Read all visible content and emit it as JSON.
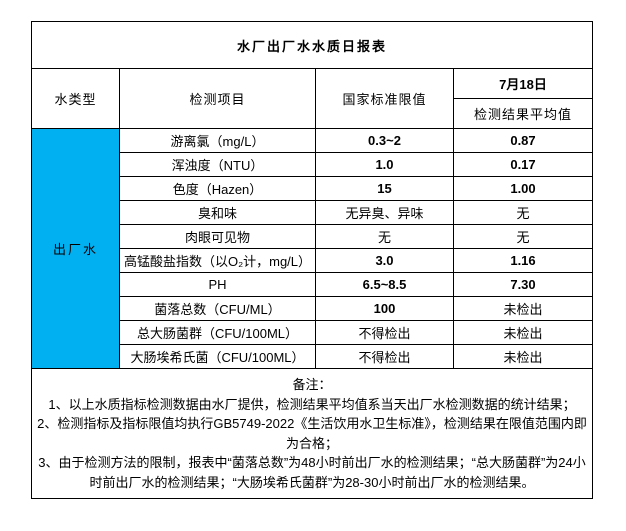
{
  "title": "水厂出厂水水质日报表",
  "header": {
    "water_type": "水类型",
    "test_item": "检测项目",
    "national_limit": "国家标准限值",
    "date": "7月18日",
    "result_avg": "检测结果平均值"
  },
  "water_type_label": "出厂水",
  "colors": {
    "water_type_bg": "#00B0F0",
    "border": "#000000"
  },
  "rows": [
    {
      "item": "游离氯（mg/L）",
      "limit": "0.3~2",
      "result": "0.87"
    },
    {
      "item": "浑浊度（NTU）",
      "limit": "1.0",
      "result": "0.17"
    },
    {
      "item": "色度（Hazen）",
      "limit": "15",
      "result": "1.00"
    },
    {
      "item": "臭和味",
      "limit": "无异臭、异味",
      "result": "无"
    },
    {
      "item": "肉眼可见物",
      "limit": "无",
      "result": "无"
    },
    {
      "item": "高锰酸盐指数（以O₂计，mg/L）",
      "limit": "3.0",
      "result": "1.16"
    },
    {
      "item": "PH",
      "limit": "6.5~8.5",
      "result": "7.30"
    },
    {
      "item": "菌落总数（CFU/ML）",
      "limit": "100",
      "result": "未检出"
    },
    {
      "item": "总大肠菌群（CFU/100ML）",
      "limit": "不得检出",
      "result": "未检出"
    },
    {
      "item": "大肠埃希氏菌（CFU/100ML）",
      "limit": "不得检出",
      "result": "未检出"
    }
  ],
  "notes": {
    "label": "备注：",
    "items": [
      "1、以上水质指标检测数据由水厂提供，检测结果平均值系当天出厂水检测数据的统计结果；",
      "2、检测指标及指标限值均执行GB5749-2022《生活饮用水卫生标准》，检测结果在限值范围内即为合格；",
      "3、由于检测方法的限制，报表中“菌落总数”为48小时前出厂水的检测结果；“总大肠菌群”为24小时前出厂水的检测结果；“大肠埃希氏菌群”为28-30小时前出厂水的检测结果。"
    ]
  }
}
